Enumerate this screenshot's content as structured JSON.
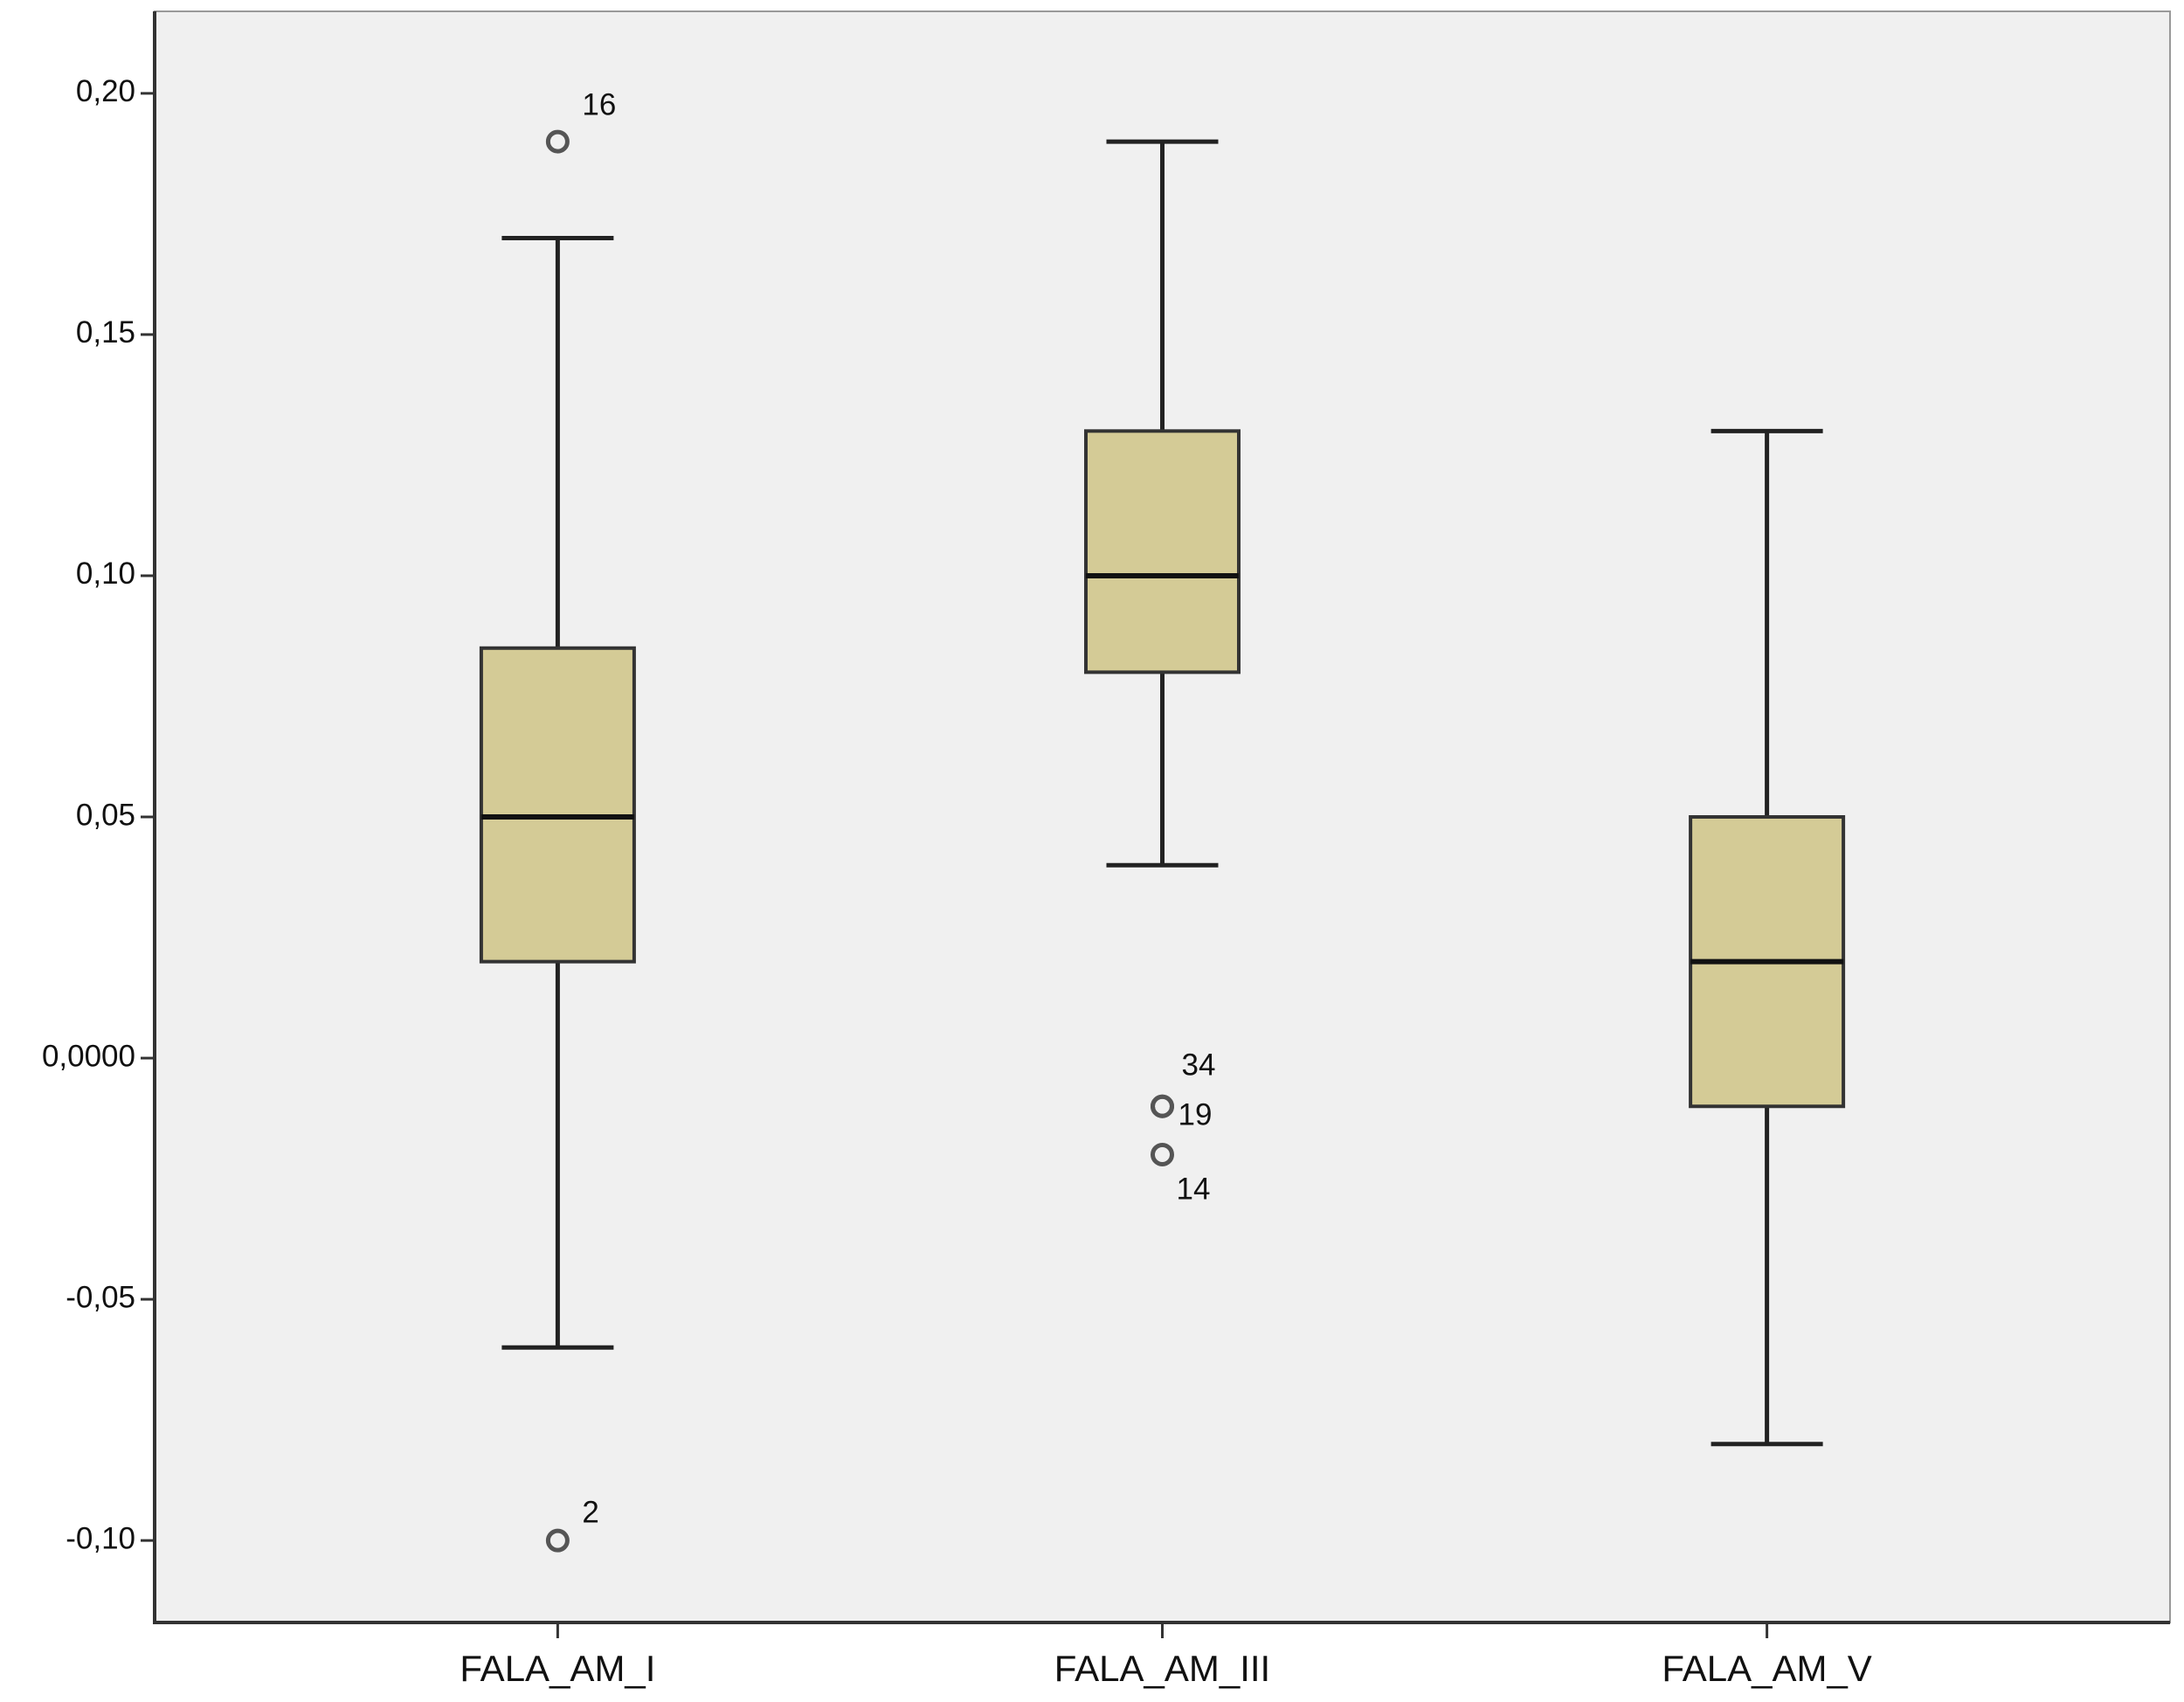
{
  "chart_data": {
    "type": "box",
    "categories": [
      "FALA_AM_I",
      "FALA_AM_III",
      "FALA_AM_V"
    ],
    "boxes": [
      {
        "whislo": -0.06,
        "q1": 0.02,
        "med": 0.05,
        "q3": 0.085,
        "whishi": 0.17,
        "outliers": [
          {
            "value": 0.19,
            "label": "16"
          },
          {
            "value": -0.1,
            "label": "2"
          }
        ]
      },
      {
        "whislo": 0.04,
        "q1": 0.08,
        "med": 0.1,
        "q3": 0.13,
        "whishi": 0.19,
        "outliers": [
          {
            "value": -0.01,
            "label": "34"
          },
          {
            "value": -0.01,
            "label": "19"
          },
          {
            "value": -0.02,
            "label": "14"
          }
        ]
      },
      {
        "whislo": -0.08,
        "q1": -0.01,
        "med": 0.02,
        "q3": 0.05,
        "whishi": 0.13,
        "outliers": []
      }
    ],
    "color": "#d4cb96",
    "ylim": [
      -0.117,
      0.217
    ],
    "yticks": [
      {
        "value": -0.1,
        "label": "-0,10"
      },
      {
        "value": -0.05,
        "label": "-0,05"
      },
      {
        "value": 0,
        "label": "0,0000"
      },
      {
        "value": 0.05,
        "label": "0,05"
      },
      {
        "value": 0.1,
        "label": "0,10"
      },
      {
        "value": 0.15,
        "label": "0,15"
      },
      {
        "value": 0.2,
        "label": "0,20"
      }
    ]
  }
}
